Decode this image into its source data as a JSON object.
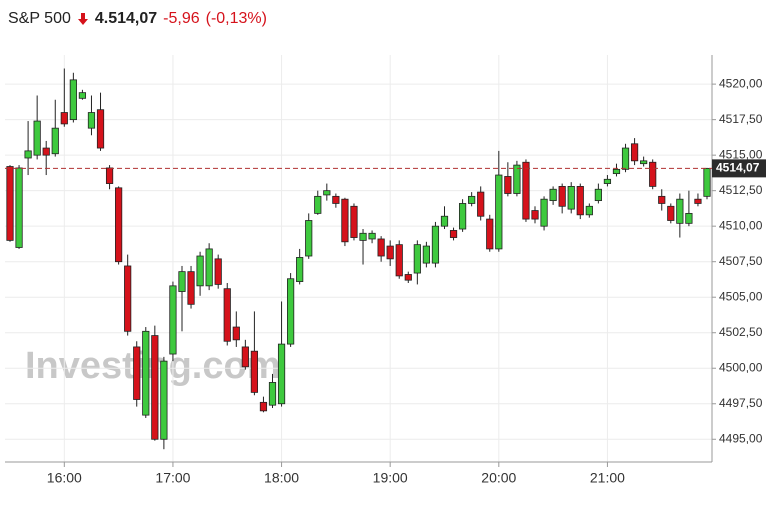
{
  "chart_data": {
    "type": "candlestick",
    "header": {
      "name": "S&P 500",
      "price": "4.514,07",
      "change": "-5,96",
      "change_pct": "(-0,13%)"
    },
    "watermark": "Investing.com",
    "x": [
      "15:30",
      "15:35",
      "15:40",
      "15:45",
      "15:50",
      "15:55",
      "16:00",
      "16:05",
      "16:10",
      "16:15",
      "16:20",
      "16:25",
      "16:30",
      "16:35",
      "16:40",
      "16:45",
      "16:50",
      "16:55",
      "17:00",
      "17:05",
      "17:10",
      "17:15",
      "17:20",
      "17:25",
      "17:30",
      "17:35",
      "17:40",
      "17:45",
      "17:50",
      "17:55",
      "18:00",
      "18:05",
      "18:10",
      "18:15",
      "18:20",
      "18:25",
      "18:30",
      "18:35",
      "18:40",
      "18:45",
      "18:50",
      "18:55",
      "19:00",
      "19:05",
      "19:10",
      "19:15",
      "19:20",
      "19:25",
      "19:30",
      "19:35",
      "19:40",
      "19:45",
      "19:50",
      "19:55",
      "20:00",
      "20:05",
      "20:10",
      "20:15",
      "20:20",
      "20:25",
      "20:30",
      "20:35",
      "20:40",
      "20:45",
      "20:50",
      "20:55",
      "21:00",
      "21:05",
      "21:10",
      "21:15",
      "21:20",
      "21:25",
      "21:30",
      "21:35",
      "21:40",
      "21:45",
      "21:50",
      "21:55"
    ],
    "open": [
      4514.2,
      4508.5,
      4514.8,
      4515.0,
      4515.5,
      4515.1,
      4518.0,
      4517.5,
      4519.0,
      4516.9,
      4518.2,
      4514.1,
      4512.7,
      4507.2,
      4501.5,
      4496.7,
      4502.3,
      4495.0,
      4501.0,
      4505.4,
      4506.8,
      4505.8,
      4505.8,
      4507.7,
      4505.6,
      4502.9,
      4501.5,
      4501.2,
      4497.6,
      4497.4,
      4497.5,
      4501.7,
      4506.1,
      4507.9,
      4510.9,
      4512.2,
      4512.1,
      4511.9,
      4511.4,
      4509.0,
      4509.1,
      4509.1,
      4508.6,
      4508.7,
      4506.6,
      4506.7,
      4507.4,
      4507.4,
      4510.0,
      4509.7,
      4509.8,
      4511.6,
      4512.4,
      4510.5,
      4508.4,
      4513.5,
      4512.3,
      4514.5,
      4511.1,
      4510.0,
      4511.8,
      4512.8,
      4511.2,
      4512.8,
      4510.8,
      4511.8,
      4513.0,
      4513.7,
      4514.0,
      4515.8,
      4514.4,
      4514.5,
      4512.1,
      4511.4,
      4510.2,
      4510.2,
      4511.9,
      4512.1
    ],
    "high": [
      4514.3,
      4514.3,
      4517.4,
      4519.2,
      4516.0,
      4518.9,
      4521.1,
      4520.8,
      4519.6,
      4519.2,
      4519.4,
      4514.3,
      4512.8,
      4508.0,
      4501.9,
      4502.9,
      4503.0,
      4500.8,
      4506.1,
      4507.2,
      4507.2,
      4508.2,
      4508.8,
      4508.0,
      4506.0,
      4504.0,
      4502.0,
      4504.0,
      4498.0,
      4499.6,
      4504.7,
      4506.7,
      4508.4,
      4510.9,
      4512.5,
      4513.0,
      4512.3,
      4512.0,
      4511.6,
      4509.8,
      4509.7,
      4509.3,
      4509.0,
      4509.0,
      4506.8,
      4509.0,
      4508.9,
      4510.3,
      4511.4,
      4509.9,
      4511.9,
      4512.4,
      4512.8,
      4510.8,
      4515.3,
      4514.5,
      4514.6,
      4514.7,
      4511.4,
      4512.1,
      4512.8,
      4513.0,
      4513.1,
      4513.0,
      4511.6,
      4513.0,
      4513.6,
      4514.4,
      4515.8,
      4516.2,
      4514.9,
      4514.7,
      4512.6,
      4511.6,
      4512.3,
      4512.5,
      4512.3,
      4514.1
    ],
    "low": [
      4508.9,
      4508.4,
      4513.6,
      4514.7,
      4513.6,
      4514.9,
      4517.0,
      4517.3,
      4518.9,
      4516.4,
      4515.3,
      4512.6,
      4507.3,
      4502.3,
      4497.3,
      4496.5,
      4494.9,
      4494.3,
      4500.5,
      4502.6,
      4504.2,
      4505.1,
      4505.5,
      4505.6,
      4501.6,
      4501.5,
      4499.9,
      4498.1,
      4496.9,
      4497.2,
      4497.3,
      4501.5,
      4505.9,
      4507.7,
      4510.8,
      4511.8,
      4511.3,
      4508.6,
      4509.0,
      4507.3,
      4508.8,
      4507.5,
      4507.2,
      4506.3,
      4506.0,
      4505.9,
      4507.1,
      4507.1,
      4509.8,
      4509.0,
      4509.6,
      4511.4,
      4510.4,
      4508.2,
      4508.2,
      4512.1,
      4512.1,
      4510.3,
      4510.2,
      4509.7,
      4511.5,
      4510.9,
      4510.9,
      4510.5,
      4510.6,
      4511.6,
      4512.8,
      4513.5,
      4513.8,
      4514.3,
      4514.2,
      4512.6,
      4511.1,
      4510.2,
      4509.2,
      4510.0,
      4511.4,
      4511.9
    ],
    "close": [
      4509.0,
      4514.1,
      4515.3,
      4517.4,
      4515.0,
      4516.9,
      4517.2,
      4520.3,
      4519.4,
      4518.0,
      4515.5,
      4513.0,
      4507.5,
      4502.6,
      4497.8,
      4502.6,
      4495.0,
      4500.5,
      4505.8,
      4506.8,
      4504.5,
      4507.9,
      4508.4,
      4505.9,
      4501.9,
      4502.0,
      4500.1,
      4498.3,
      4497.0,
      4499.0,
      4501.7,
      4506.3,
      4507.8,
      4510.4,
      4512.1,
      4512.5,
      4511.6,
      4508.9,
      4509.2,
      4509.5,
      4509.5,
      4507.9,
      4507.7,
      4506.5,
      4506.2,
      4508.7,
      4508.6,
      4510.0,
      4510.7,
      4509.2,
      4511.6,
      4512.1,
      4510.7,
      4508.4,
      4513.6,
      4512.3,
      4514.3,
      4510.5,
      4510.5,
      4511.9,
      4512.6,
      4511.4,
      4512.8,
      4510.8,
      4511.4,
      4512.6,
      4513.3,
      4514.0,
      4515.5,
      4514.6,
      4514.6,
      4512.8,
      4511.6,
      4510.4,
      4511.9,
      4510.9,
      4511.6,
      4514.07
    ],
    "up_color": "#3ec93e",
    "down_color": "#d5121b",
    "last": {
      "value": 4514.07,
      "label": "4514,07"
    },
    "xticks": [
      "16:00",
      "17:00",
      "18:00",
      "19:00",
      "20:00",
      "21:00"
    ],
    "ylim": [
      4493.4,
      4522.05
    ],
    "yticks": [
      {
        "value": 4495,
        "label": "4495,00"
      },
      {
        "value": 4497.5,
        "label": "4497,50"
      },
      {
        "value": 4500,
        "label": "4500,00"
      },
      {
        "value": 4502.5,
        "label": "4502,50"
      },
      {
        "value": 4505,
        "label": "4505,00"
      },
      {
        "value": 4507.5,
        "label": "4507,50"
      },
      {
        "value": 4510,
        "label": "4510,00"
      },
      {
        "value": 4512.5,
        "label": "4512,50"
      },
      {
        "value": 4515,
        "label": "4515,00"
      },
      {
        "value": 4517.5,
        "label": "4517,50"
      },
      {
        "value": 4520,
        "label": "4520,00"
      }
    ],
    "grid": true
  }
}
